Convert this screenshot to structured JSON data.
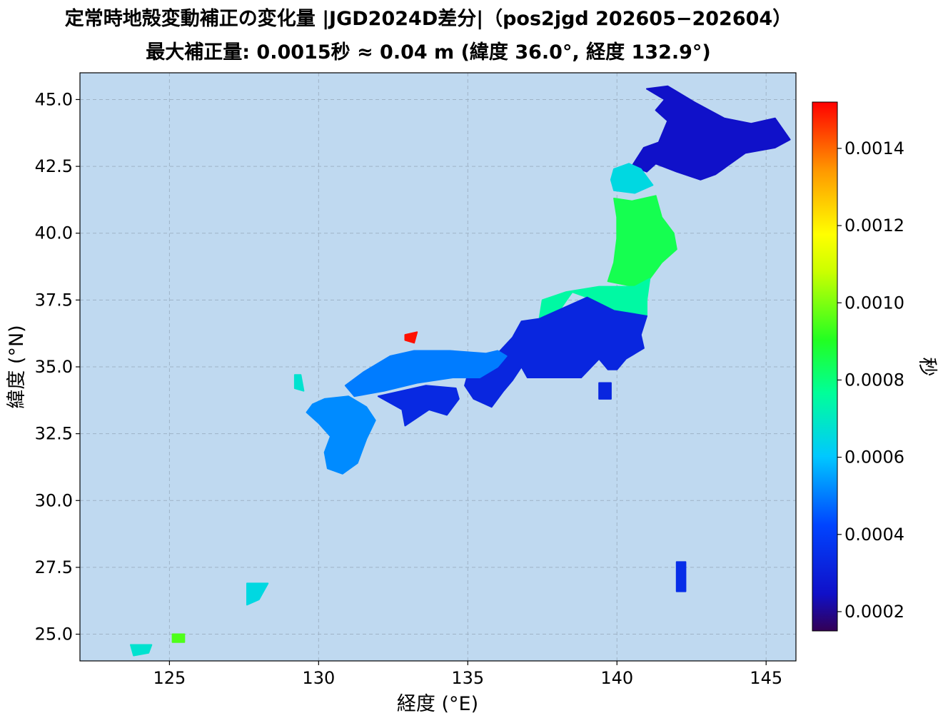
{
  "chart_data": {
    "type": "heatmap",
    "title": "定常時地殻変動補正の変化量 |JGD2024D差分|（pos2jgd 202605−202604）",
    "subtitle": "最大補正量: 0.0015秒 ≈ 0.04 m  (緯度 36.0°, 経度 132.9°)",
    "xlabel": "経度 (°E)",
    "ylabel": "緯度 (°N)",
    "xlim": [
      122,
      146
    ],
    "ylim": [
      24,
      46
    ],
    "xticks": [
      125,
      130,
      135,
      140,
      145
    ],
    "yticks": [
      25.0,
      27.5,
      30.0,
      32.5,
      35.0,
      37.5,
      40.0,
      42.5,
      45.0
    ],
    "xtick_labels": [
      "125",
      "130",
      "135",
      "140",
      "145"
    ],
    "ytick_labels": [
      "25.0",
      "27.5",
      "30.0",
      "32.5",
      "35.0",
      "37.5",
      "40.0",
      "42.5",
      "45.0"
    ],
    "grid": true,
    "colormap": "jet",
    "background_color": "#bfd9f0",
    "colorbar": {
      "label": "秒",
      "min": 0.00015,
      "max": 0.00152,
      "ticks": [
        0.0002,
        0.0004,
        0.0006,
        0.0008,
        0.001,
        0.0012,
        0.0014
      ],
      "tick_labels": [
        "0.0002",
        "0.0004",
        "0.0006",
        "0.0008",
        "0.0010",
        "0.0012",
        "0.0014"
      ]
    },
    "max_point": {
      "value": 0.0015,
      "lat": 36.0,
      "lon": 132.9
    },
    "regions": [
      {
        "name": "hokkaido",
        "value": 0.00025,
        "points": [
          [
            141.0,
            45.4
          ],
          [
            141.7,
            45.5
          ],
          [
            142.6,
            44.9
          ],
          [
            143.6,
            44.3
          ],
          [
            144.5,
            44.1
          ],
          [
            145.3,
            44.3
          ],
          [
            145.8,
            43.5
          ],
          [
            145.3,
            43.2
          ],
          [
            144.3,
            43.0
          ],
          [
            143.3,
            42.2
          ],
          [
            142.8,
            42.0
          ],
          [
            142.0,
            42.3
          ],
          [
            141.3,
            42.6
          ],
          [
            141.0,
            42.3
          ],
          [
            140.5,
            42.5
          ],
          [
            140.9,
            43.2
          ],
          [
            141.4,
            43.4
          ],
          [
            141.7,
            44.2
          ],
          [
            141.3,
            44.6
          ],
          [
            141.6,
            45.0
          ]
        ]
      },
      {
        "name": "oshima",
        "value": 0.00065,
        "points": [
          [
            139.9,
            41.6
          ],
          [
            140.6,
            41.5
          ],
          [
            141.2,
            41.8
          ],
          [
            140.8,
            42.4
          ],
          [
            140.4,
            42.6
          ],
          [
            139.9,
            42.4
          ],
          [
            139.8,
            42.0
          ]
        ]
      },
      {
        "name": "tohoku-north",
        "value": 0.00085,
        "points": [
          [
            139.9,
            41.3
          ],
          [
            140.5,
            41.2
          ],
          [
            141.3,
            41.4
          ],
          [
            141.5,
            40.6
          ],
          [
            141.9,
            40.0
          ],
          [
            142.0,
            39.4
          ],
          [
            141.5,
            38.9
          ],
          [
            141.1,
            38.3
          ],
          [
            140.6,
            38.0
          ],
          [
            139.7,
            38.2
          ],
          [
            139.9,
            38.9
          ],
          [
            140.0,
            39.8
          ],
          [
            140.0,
            40.6
          ]
        ]
      },
      {
        "name": "tohoku-south",
        "value": 0.00075,
        "points": [
          [
            139.4,
            38.0
          ],
          [
            140.6,
            38.0
          ],
          [
            141.1,
            38.3
          ],
          [
            141.0,
            37.5
          ],
          [
            141.0,
            36.9
          ],
          [
            139.9,
            37.1
          ],
          [
            139.0,
            37.6
          ],
          [
            138.5,
            37.8
          ],
          [
            138.0,
            37.0
          ],
          [
            137.4,
            36.8
          ],
          [
            137.5,
            37.5
          ],
          [
            138.3,
            37.8
          ]
        ]
      },
      {
        "name": "kanto-chubu",
        "value": 0.00032,
        "points": [
          [
            137.4,
            36.8
          ],
          [
            139.0,
            37.6
          ],
          [
            139.9,
            37.1
          ],
          [
            141.0,
            36.9
          ],
          [
            140.8,
            36.2
          ],
          [
            140.9,
            35.7
          ],
          [
            140.3,
            35.3
          ],
          [
            140.0,
            34.9
          ],
          [
            139.7,
            34.9
          ],
          [
            139.4,
            35.3
          ],
          [
            138.8,
            34.6
          ],
          [
            138.2,
            34.6
          ],
          [
            137.0,
            34.6
          ],
          [
            136.8,
            35.0
          ],
          [
            136.5,
            34.5
          ],
          [
            136.2,
            34.1
          ],
          [
            135.8,
            33.5
          ],
          [
            135.2,
            33.8
          ],
          [
            134.9,
            34.3
          ],
          [
            135.0,
            34.7
          ],
          [
            135.5,
            34.8
          ],
          [
            136.0,
            35.5
          ],
          [
            136.5,
            36.1
          ],
          [
            136.8,
            36.7
          ]
        ]
      },
      {
        "name": "kansai-chugoku",
        "value": 0.0005,
        "points": [
          [
            136.0,
            35.6
          ],
          [
            135.6,
            35.5
          ],
          [
            134.4,
            35.6
          ],
          [
            133.2,
            35.6
          ],
          [
            132.4,
            35.4
          ],
          [
            131.5,
            34.8
          ],
          [
            130.9,
            34.3
          ],
          [
            131.2,
            33.9
          ],
          [
            132.2,
            34.1
          ],
          [
            133.3,
            34.4
          ],
          [
            134.5,
            34.6
          ],
          [
            135.4,
            34.6
          ],
          [
            136.0,
            35.0
          ],
          [
            136.3,
            35.4
          ]
        ]
      },
      {
        "name": "shikoku",
        "value": 0.00033,
        "points": [
          [
            132.0,
            33.9
          ],
          [
            132.8,
            33.4
          ],
          [
            132.9,
            32.8
          ],
          [
            133.7,
            33.4
          ],
          [
            134.3,
            33.2
          ],
          [
            134.7,
            33.8
          ],
          [
            134.6,
            34.2
          ],
          [
            133.6,
            34.3
          ],
          [
            132.8,
            34.1
          ]
        ]
      },
      {
        "name": "kyushu",
        "value": 0.00052,
        "points": [
          [
            130.2,
            33.8
          ],
          [
            131.0,
            33.9
          ],
          [
            131.6,
            33.5
          ],
          [
            131.9,
            33.0
          ],
          [
            131.6,
            32.3
          ],
          [
            131.3,
            31.4
          ],
          [
            130.8,
            31.0
          ],
          [
            130.3,
            31.2
          ],
          [
            130.2,
            31.8
          ],
          [
            130.4,
            32.4
          ],
          [
            130.0,
            32.9
          ],
          [
            129.6,
            33.3
          ],
          [
            129.8,
            33.6
          ]
        ]
      },
      {
        "name": "shimane-hotspot",
        "value": 0.0015,
        "points": [
          [
            132.9,
            36.2
          ],
          [
            133.3,
            36.3
          ],
          [
            133.2,
            35.9
          ],
          [
            132.9,
            36.0
          ]
        ]
      },
      {
        "name": "tsushima",
        "value": 0.00068,
        "points": [
          [
            129.2,
            34.7
          ],
          [
            129.4,
            34.7
          ],
          [
            129.5,
            34.1
          ],
          [
            129.2,
            34.2
          ]
        ]
      },
      {
        "name": "okinawa",
        "value": 0.00065,
        "points": [
          [
            127.6,
            26.9
          ],
          [
            128.3,
            26.9
          ],
          [
            128.0,
            26.3
          ],
          [
            127.6,
            26.1
          ]
        ]
      },
      {
        "name": "sakishima",
        "value": 0.00068,
        "points": [
          [
            123.7,
            24.6
          ],
          [
            124.4,
            24.6
          ],
          [
            124.3,
            24.3
          ],
          [
            123.8,
            24.2
          ]
        ]
      },
      {
        "name": "yonaguni-hotspot",
        "value": 0.00095,
        "points": [
          [
            125.1,
            25.0
          ],
          [
            125.5,
            25.0
          ],
          [
            125.5,
            24.7
          ],
          [
            125.1,
            24.7
          ]
        ]
      },
      {
        "name": "izu-islands",
        "value": 0.00032,
        "points": [
          [
            139.4,
            34.4
          ],
          [
            139.8,
            34.4
          ],
          [
            139.8,
            33.8
          ],
          [
            139.4,
            33.8
          ]
        ]
      },
      {
        "name": "bonin",
        "value": 0.00035,
        "points": [
          [
            142.0,
            27.7
          ],
          [
            142.3,
            27.7
          ],
          [
            142.3,
            26.6
          ],
          [
            142.0,
            26.6
          ]
        ]
      }
    ]
  }
}
